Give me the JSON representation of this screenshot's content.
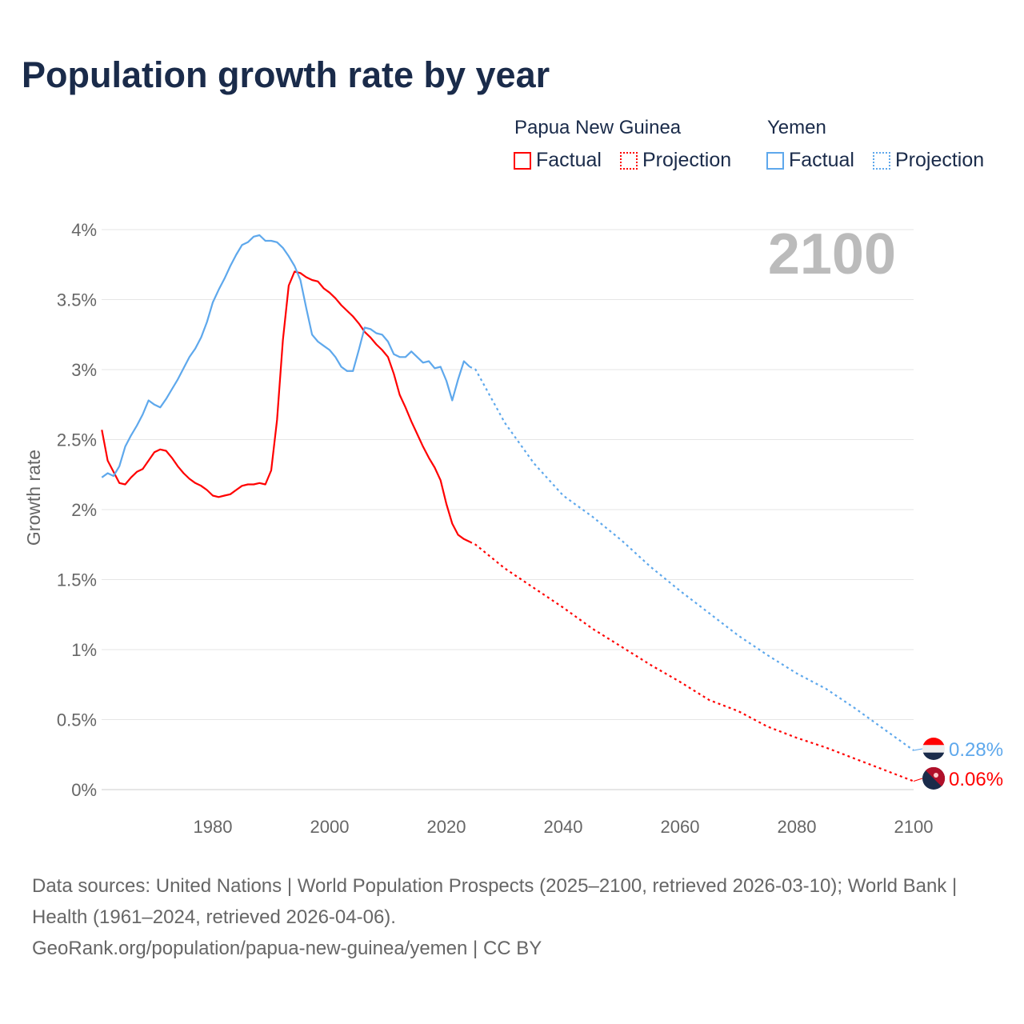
{
  "title": "Population growth rate by year",
  "legend": {
    "groups": [
      {
        "name": "Papua New Guinea",
        "factual": "Factual",
        "projection": "Projection",
        "color": "#ff0000"
      },
      {
        "name": "Yemen",
        "factual": "Factual",
        "projection": "Projection",
        "color": "#5ea8ec"
      }
    ]
  },
  "year_label": "2100",
  "footer": {
    "sources": "Data sources: United Nations | World Population Prospects (2025–2100, retrieved 2026-03-10); World Bank | Health (1961–2024, retrieved 2026-04-06).",
    "credit": "GeoRank.org/population/papua-new-guinea/yemen | CC BY"
  },
  "chart_data": {
    "type": "line",
    "title": "Population growth rate by year",
    "xlabel": "",
    "ylabel": "Growth rate",
    "xlim": [
      1961,
      2100
    ],
    "ylim": [
      0,
      4
    ],
    "x_ticks": [
      1980,
      2000,
      2020,
      2040,
      2060,
      2080,
      2100
    ],
    "y_ticks": [
      {
        "v": 0,
        "label": "0%"
      },
      {
        "v": 0.5,
        "label": "0.5%"
      },
      {
        "v": 1,
        "label": "1%"
      },
      {
        "v": 1.5,
        "label": "1.5%"
      },
      {
        "v": 2,
        "label": "2%"
      },
      {
        "v": 2.5,
        "label": "2.5%"
      },
      {
        "v": 3,
        "label": "3%"
      },
      {
        "v": 3.5,
        "label": "3.5%"
      },
      {
        "v": 4,
        "label": "4%"
      }
    ],
    "grid": true,
    "series": [
      {
        "name": "Papua New Guinea",
        "color": "#ff0000",
        "end_label": "0.06%",
        "factual_start": 1961,
        "factual": [
          2.57,
          2.35,
          2.27,
          2.19,
          2.18,
          2.23,
          2.27,
          2.29,
          2.35,
          2.41,
          2.43,
          2.42,
          2.37,
          2.31,
          2.26,
          2.22,
          2.19,
          2.17,
          2.14,
          2.1,
          2.09,
          2.1,
          2.11,
          2.14,
          2.17,
          2.18,
          2.18,
          2.19,
          2.18,
          2.28,
          2.64,
          3.21,
          3.6,
          3.7,
          3.69,
          3.66,
          3.64,
          3.63,
          3.58,
          3.55,
          3.51,
          3.46,
          3.42,
          3.38,
          3.33,
          3.27,
          3.23,
          3.18,
          3.14,
          3.09,
          2.97,
          2.82,
          2.73,
          2.63,
          2.54,
          2.45,
          2.37,
          2.3,
          2.21,
          2.04,
          1.9,
          1.82,
          1.79,
          1.77
        ],
        "projection_years": [
          2024,
          2025,
          2030,
          2035,
          2040,
          2045,
          2050,
          2055,
          2060,
          2065,
          2070,
          2075,
          2080,
          2085,
          2090,
          2095,
          2100
        ],
        "projection": [
          1.77,
          1.75,
          1.58,
          1.44,
          1.3,
          1.15,
          1.02,
          0.89,
          0.77,
          0.64,
          0.56,
          0.45,
          0.37,
          0.3,
          0.22,
          0.14,
          0.06
        ]
      },
      {
        "name": "Yemen",
        "color": "#5ea8ec",
        "end_label": "0.28%",
        "factual_start": 1961,
        "factual": [
          2.23,
          2.26,
          2.24,
          2.31,
          2.45,
          2.53,
          2.6,
          2.68,
          2.78,
          2.75,
          2.73,
          2.79,
          2.86,
          2.93,
          3.01,
          3.09,
          3.15,
          3.23,
          3.34,
          3.48,
          3.57,
          3.65,
          3.74,
          3.82,
          3.89,
          3.91,
          3.95,
          3.96,
          3.92,
          3.92,
          3.91,
          3.87,
          3.81,
          3.74,
          3.64,
          3.44,
          3.25,
          3.2,
          3.17,
          3.14,
          3.09,
          3.02,
          2.99,
          2.99,
          3.14,
          3.3,
          3.29,
          3.26,
          3.25,
          3.2,
          3.11,
          3.09,
          3.09,
          3.13,
          3.09,
          3.05,
          3.06,
          3.01,
          3.02,
          2.92,
          2.78,
          2.93,
          3.06,
          3.02
        ],
        "projection_years": [
          2024,
          2025,
          2030,
          2035,
          2040,
          2045,
          2050,
          2055,
          2060,
          2065,
          2070,
          2075,
          2080,
          2085,
          2090,
          2095,
          2100
        ],
        "projection": [
          3.02,
          3.0,
          2.62,
          2.33,
          2.1,
          1.95,
          1.78,
          1.59,
          1.42,
          1.26,
          1.1,
          0.96,
          0.83,
          0.72,
          0.58,
          0.43,
          0.28
        ]
      }
    ]
  }
}
